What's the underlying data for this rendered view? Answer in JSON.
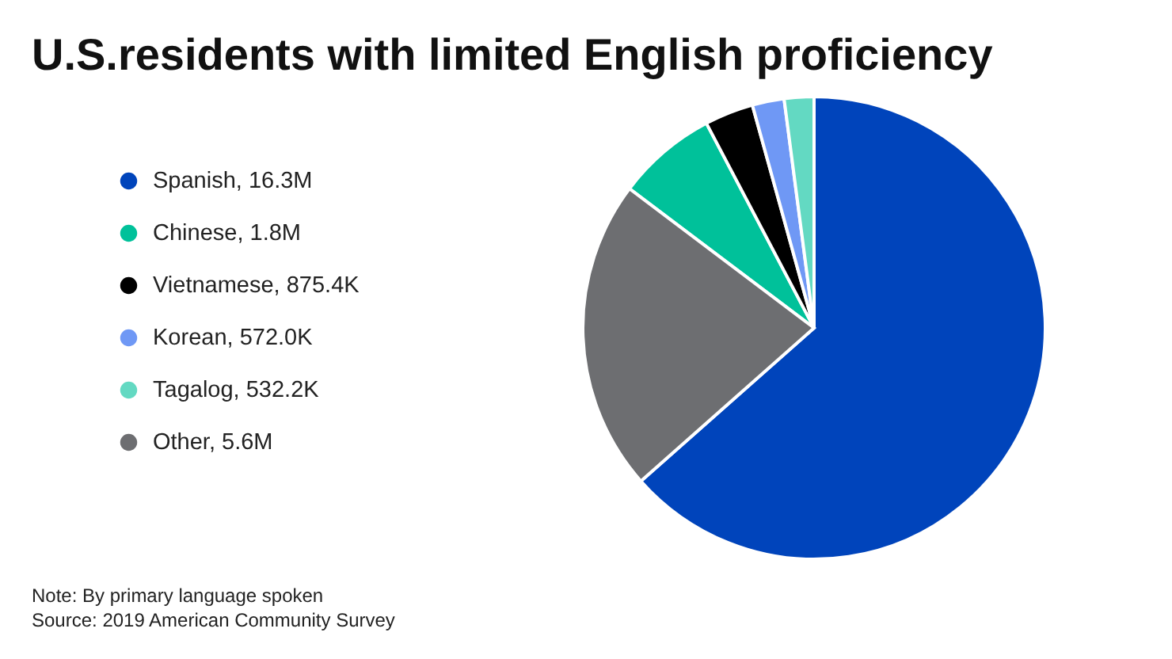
{
  "chart_data": {
    "type": "pie",
    "title": "U.S.residents with limited English proficiency",
    "categories": [
      "Spanish, 16.3M",
      "Chinese, 1.8M",
      "Vietnamese, 875.4K",
      "Korean, 572.0K",
      "Tagalog, 532.2K",
      "Other, 5.6M"
    ],
    "values": [
      16300,
      1800,
      875.4,
      572.0,
      532.2,
      5600
    ],
    "colors": [
      "#0044bb",
      "#00c19a",
      "#000000",
      "#6f98f5",
      "#63d9c2",
      "#6d6e71"
    ],
    "legend": "left",
    "annotations": [
      "Note: By primary language spoken",
      "Source: 2019 American Community Survey"
    ]
  }
}
